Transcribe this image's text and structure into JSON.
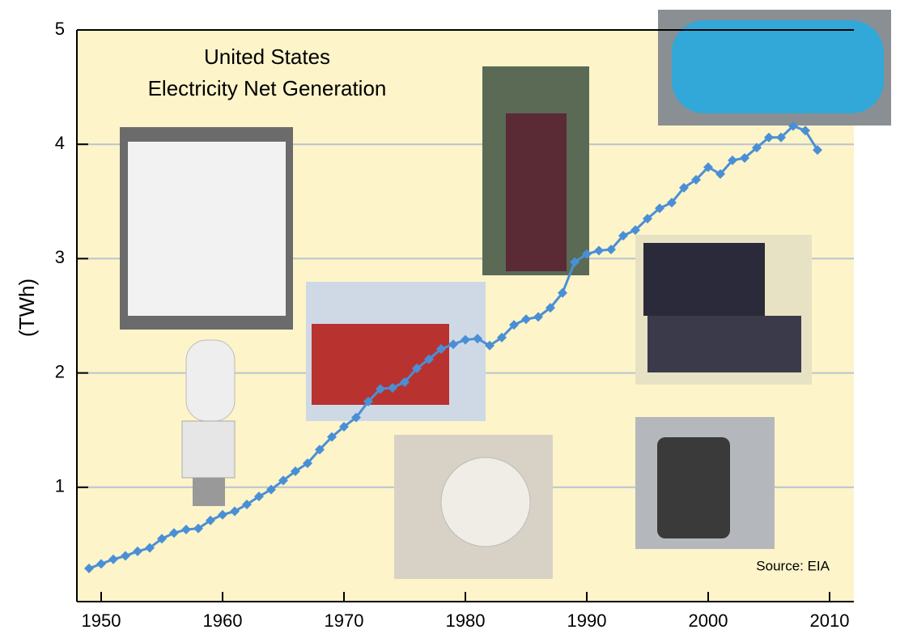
{
  "chart_data": {
    "type": "line",
    "title": "United States",
    "subtitle": "Electricity Net Generation",
    "y_label": "(TWh)",
    "annotation": "Source: EIA",
    "x": [
      1949,
      1950,
      1951,
      1952,
      1953,
      1954,
      1955,
      1956,
      1957,
      1958,
      1959,
      1960,
      1961,
      1962,
      1963,
      1964,
      1965,
      1966,
      1967,
      1968,
      1969,
      1970,
      1971,
      1972,
      1973,
      1974,
      1975,
      1976,
      1977,
      1978,
      1979,
      1980,
      1981,
      1982,
      1983,
      1984,
      1985,
      1986,
      1987,
      1988,
      1989,
      1990,
      1991,
      1992,
      1993,
      1994,
      1995,
      1996,
      1997,
      1998,
      1999,
      2000,
      2001,
      2002,
      2003,
      2004,
      2005,
      2006,
      2007,
      2008,
      2009
    ],
    "series": [
      {
        "name": "Net generation",
        "color": "#4a8fd6",
        "values": [
          0.29,
          0.33,
          0.37,
          0.4,
          0.44,
          0.47,
          0.55,
          0.6,
          0.63,
          0.64,
          0.71,
          0.76,
          0.79,
          0.85,
          0.92,
          0.98,
          1.06,
          1.14,
          1.21,
          1.33,
          1.44,
          1.53,
          1.61,
          1.75,
          1.86,
          1.87,
          1.92,
          2.04,
          2.12,
          2.21,
          2.25,
          2.29,
          2.3,
          2.24,
          2.31,
          2.42,
          2.47,
          2.49,
          2.57,
          2.7,
          2.97,
          3.04,
          3.07,
          3.08,
          3.2,
          3.25,
          3.35,
          3.44,
          3.49,
          3.62,
          3.69,
          3.8,
          3.74,
          3.86,
          3.88,
          3.97,
          4.06,
          4.06,
          4.16,
          4.12,
          3.95
        ]
      }
    ],
    "xlim": [
      1948,
      2012
    ],
    "xticks": [
      1950,
      1960,
      1970,
      1980,
      1990,
      2000,
      2010
    ],
    "ylim": [
      0,
      5
    ],
    "yticks": [
      1,
      2,
      3,
      4,
      5
    ],
    "grid": true
  }
}
